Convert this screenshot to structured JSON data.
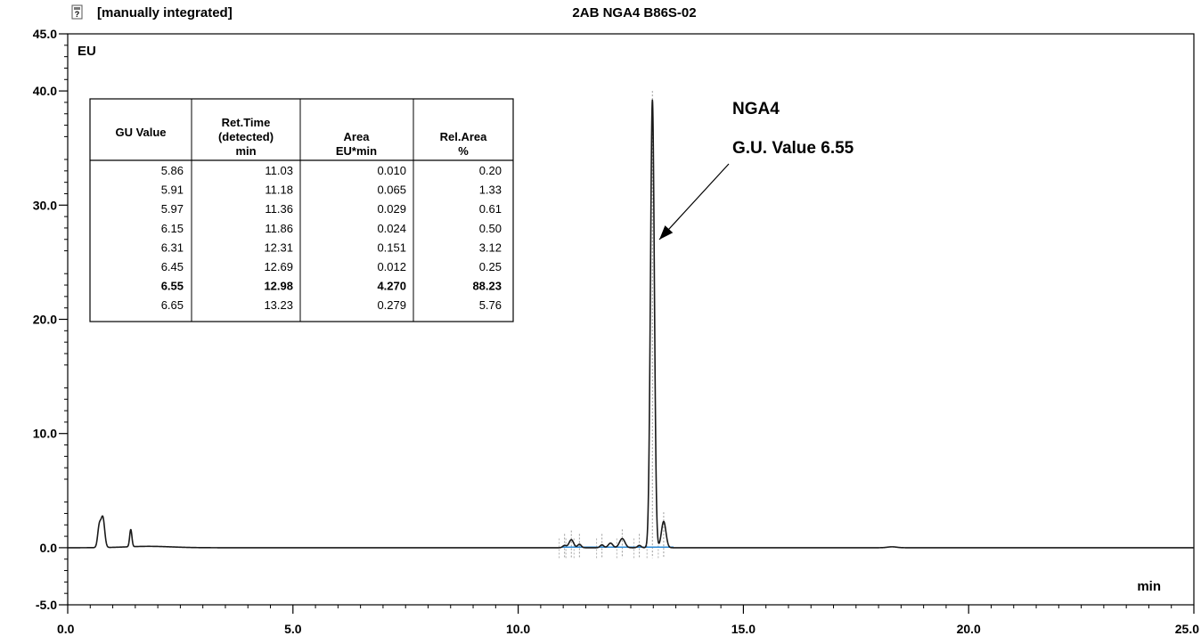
{
  "chart_data": {
    "type": "line",
    "title": "2AB NGA4 B86S-02",
    "status_label": "[manually integrated]",
    "status_icon": "report-icon",
    "xlabel": "min",
    "ylabel": "EU",
    "xlim": [
      0,
      25
    ],
    "ylim": [
      -5,
      45
    ],
    "x_ticks": [
      "0.0",
      "5.0",
      "10.0",
      "15.0",
      "20.0",
      "25.0"
    ],
    "y_ticks": [
      "-5.0",
      "0.0",
      "10.0",
      "20.0",
      "30.0",
      "40.0",
      "45.0"
    ],
    "grid": false,
    "series": [
      {
        "color": "#1a1a1a",
        "peaks": [
          {
            "rt": 0.7,
            "height": 1.8,
            "width": 0.035
          },
          {
            "rt": 0.78,
            "height": 2.6,
            "width": 0.04
          },
          {
            "rt": 1.4,
            "height": 1.5,
            "width": 0.025
          },
          {
            "rt": 11.03,
            "height": 0.2,
            "width": 0.04
          },
          {
            "rt": 11.18,
            "height": 0.7,
            "width": 0.05
          },
          {
            "rt": 11.36,
            "height": 0.3,
            "width": 0.04
          },
          {
            "rt": 11.86,
            "height": 0.25,
            "width": 0.04
          },
          {
            "rt": 12.05,
            "height": 0.4,
            "width": 0.05
          },
          {
            "rt": 12.31,
            "height": 0.8,
            "width": 0.06
          },
          {
            "rt": 12.69,
            "height": 0.2,
            "width": 0.04
          },
          {
            "rt": 12.98,
            "height": 39.2,
            "width": 0.043
          },
          {
            "rt": 13.23,
            "height": 2.3,
            "width": 0.05
          },
          {
            "rt": 18.3,
            "height": 0.08,
            "width": 0.1
          }
        ]
      }
    ],
    "integration_markers": [
      11.03,
      11.18,
      11.36,
      11.86,
      12.31,
      12.69,
      12.98,
      13.23
    ],
    "annotation": {
      "lines": [
        "NGA4",
        "G.U. Value 6.55"
      ],
      "arrow_to": {
        "x": 13.15,
        "y": 26.5
      }
    },
    "table": {
      "columns": [
        [
          "GU Value"
        ],
        [
          "Ret.Time",
          "(detected)",
          "min"
        ],
        [
          "Area",
          "EU*min"
        ],
        [
          "Rel.Area",
          "%"
        ]
      ],
      "rows": [
        {
          "cells": [
            "5.86",
            "11.03",
            "0.010",
            "0.20"
          ],
          "bold": false
        },
        {
          "cells": [
            "5.91",
            "11.18",
            "0.065",
            "1.33"
          ],
          "bold": false
        },
        {
          "cells": [
            "5.97",
            "11.36",
            "0.029",
            "0.61"
          ],
          "bold": false
        },
        {
          "cells": [
            "6.15",
            "11.86",
            "0.024",
            "0.50"
          ],
          "bold": false
        },
        {
          "cells": [
            "6.31",
            "12.31",
            "0.151",
            "3.12"
          ],
          "bold": false
        },
        {
          "cells": [
            "6.45",
            "12.69",
            "0.012",
            "0.25"
          ],
          "bold": false
        },
        {
          "cells": [
            "6.55",
            "12.98",
            "4.270",
            "88.23"
          ],
          "bold": true
        },
        {
          "cells": [
            "6.65",
            "13.23",
            "0.279",
            "5.76"
          ],
          "bold": false
        }
      ]
    }
  }
}
